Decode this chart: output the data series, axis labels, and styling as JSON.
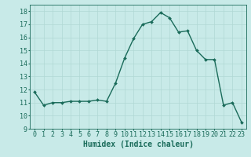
{
  "x": [
    0,
    1,
    2,
    3,
    4,
    5,
    6,
    7,
    8,
    9,
    10,
    11,
    12,
    13,
    14,
    15,
    16,
    17,
    18,
    19,
    20,
    21,
    22,
    23
  ],
  "y": [
    11.8,
    10.8,
    11.0,
    11.0,
    11.1,
    11.1,
    11.1,
    11.2,
    11.1,
    12.5,
    14.4,
    15.9,
    17.0,
    17.2,
    17.9,
    17.5,
    16.4,
    16.5,
    15.0,
    14.3,
    14.3,
    10.8,
    11.0,
    9.5
  ],
  "line_color": "#1a6b5a",
  "marker": "D",
  "marker_size": 2,
  "bg_color": "#c8eae8",
  "grid_color": "#b0d8d4",
  "xlabel": "Humidex (Indice chaleur)",
  "xlim": [
    -0.5,
    23.5
  ],
  "ylim": [
    9,
    18.5
  ],
  "yticks": [
    9,
    10,
    11,
    12,
    13,
    14,
    15,
    16,
    17,
    18
  ],
  "xticks": [
    0,
    1,
    2,
    3,
    4,
    5,
    6,
    7,
    8,
    9,
    10,
    11,
    12,
    13,
    14,
    15,
    16,
    17,
    18,
    19,
    20,
    21,
    22,
    23
  ],
  "xlabel_fontsize": 7,
  "tick_fontsize": 6,
  "line_width": 1.0
}
